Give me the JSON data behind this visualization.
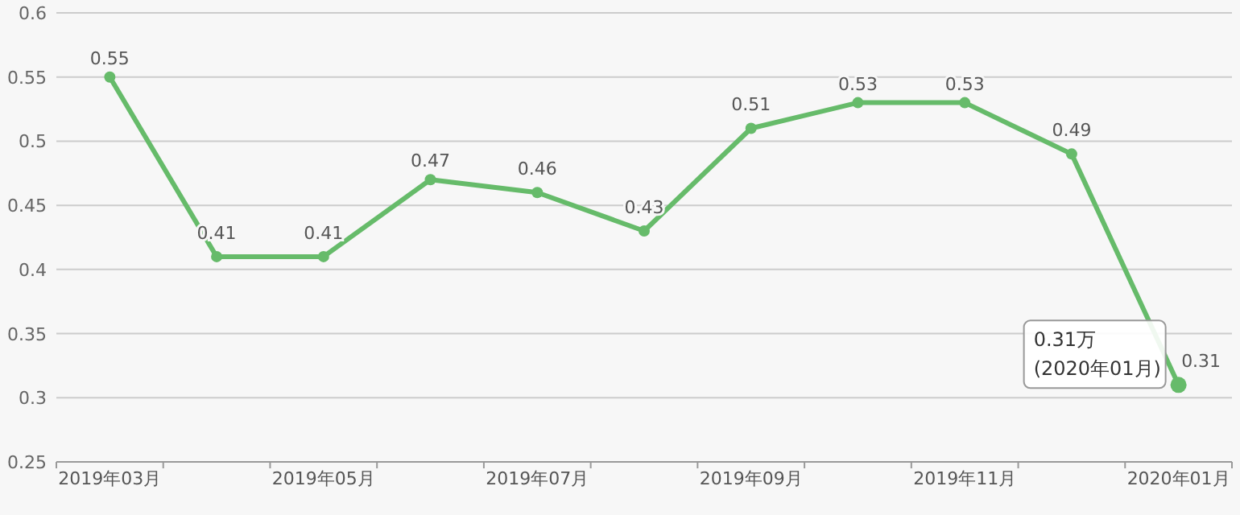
{
  "chart_data": {
    "type": "line",
    "categories": [
      "2019年03月",
      null,
      "2019年05月",
      null,
      "2019年07月",
      null,
      "2019年09月",
      null,
      "2019年11月",
      null,
      "2020年01月"
    ],
    "series": [
      {
        "color": "#66bb6a",
        "values": [
          0.55,
          0.41,
          0.41,
          0.47,
          0.46,
          0.43,
          0.51,
          0.53,
          0.53,
          0.49,
          0.31
        ]
      }
    ],
    "ylim": [
      0.25,
      0.6
    ],
    "yticks": [
      0.25,
      0.3,
      0.35,
      0.4,
      0.45,
      0.5,
      0.55,
      0.6
    ],
    "grid": "y",
    "marker": "circle",
    "line_style": "solid",
    "data_labels": true,
    "annotations": [
      {
        "text": "0.31万\n(2020年01月)",
        "x": "2020年01月",
        "y": 0.31
      }
    ]
  }
}
